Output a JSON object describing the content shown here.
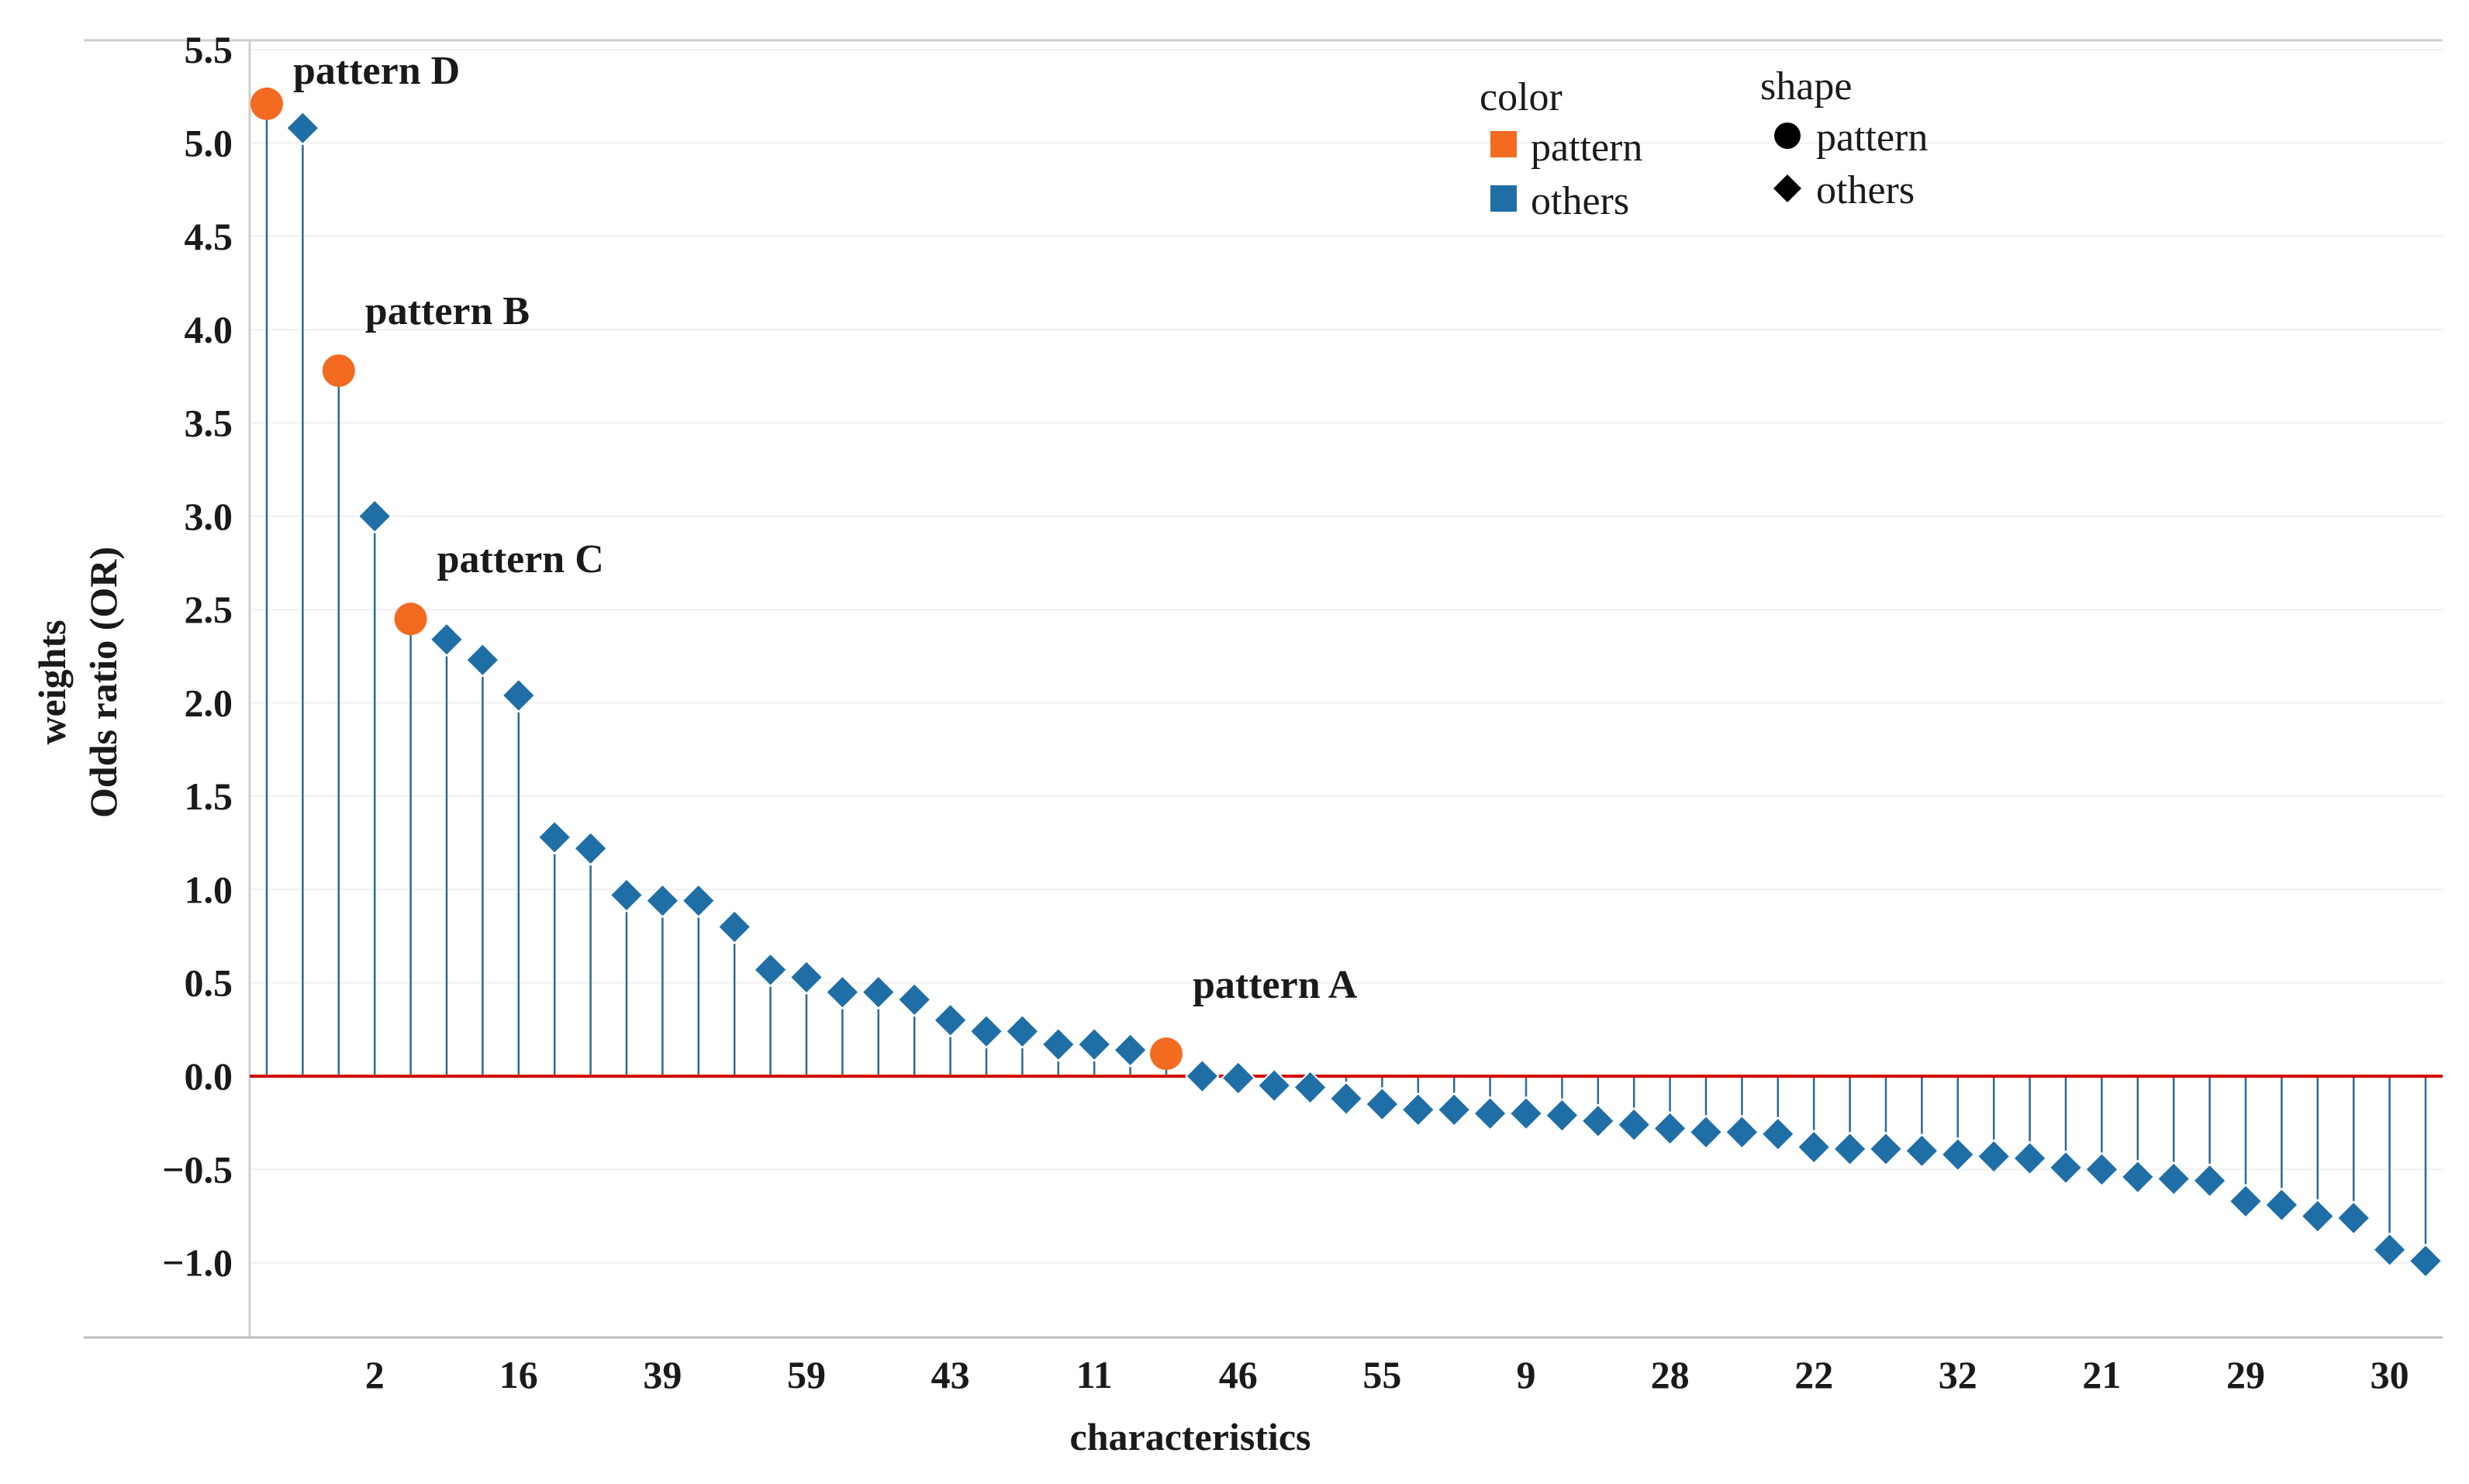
{
  "chart_data": {
    "type": "scatter",
    "subtype": "lollipop",
    "title": "",
    "xlabel": "characteristics",
    "ylabel_lines": [
      "weights",
      "Odds ratio (OR)"
    ],
    "ylim": [
      -1.4,
      5.55
    ],
    "yticks": [
      5.5,
      5.0,
      4.5,
      4.0,
      3.5,
      3.0,
      2.5,
      2.0,
      1.5,
      1.0,
      0.5,
      0.0,
      -0.5,
      -1.0
    ],
    "ytick_labels": [
      "5.5",
      "5.0",
      "4.5",
      "4.0",
      "3.5",
      "3.0",
      "2.5",
      "2.0",
      "1.5",
      "1.0",
      "0.5",
      "0.0",
      "−0.5",
      "−1.0"
    ],
    "x_tick_labels": [
      {
        "index": 3,
        "label": "2"
      },
      {
        "index": 7,
        "label": "16"
      },
      {
        "index": 11,
        "label": "39"
      },
      {
        "index": 15,
        "label": "59"
      },
      {
        "index": 19,
        "label": "43"
      },
      {
        "index": 23,
        "label": "11"
      },
      {
        "index": 27,
        "label": "46"
      },
      {
        "index": 31,
        "label": "55"
      },
      {
        "index": 35,
        "label": "9"
      },
      {
        "index": 39,
        "label": "28"
      },
      {
        "index": 43,
        "label": "22"
      },
      {
        "index": 47,
        "label": "32"
      },
      {
        "index": 51,
        "label": "21"
      },
      {
        "index": 55,
        "label": "29"
      },
      {
        "index": 59,
        "label": "30"
      }
    ],
    "reference_line": {
      "y": 0,
      "color": "#d40000"
    },
    "colors": {
      "pattern": "#f26b21",
      "others": "#1f6fa6",
      "stem": "#2b6a95"
    },
    "values": [
      5.21,
      5.08,
      3.78,
      3.0,
      2.45,
      2.34,
      2.23,
      2.04,
      1.28,
      1.22,
      0.97,
      0.94,
      0.94,
      0.8,
      0.57,
      0.53,
      0.45,
      0.45,
      0.41,
      0.3,
      0.24,
      0.24,
      0.17,
      0.17,
      0.14,
      0.12,
      0.0,
      -0.01,
      -0.05,
      -0.06,
      -0.12,
      -0.15,
      -0.18,
      -0.18,
      -0.2,
      -0.2,
      -0.21,
      -0.24,
      -0.26,
      -0.28,
      -0.3,
      -0.3,
      -0.31,
      -0.38,
      -0.39,
      -0.39,
      -0.4,
      -0.42,
      -0.43,
      -0.44,
      -0.49,
      -0.5,
      -0.54,
      -0.55,
      -0.56,
      -0.67,
      -0.69,
      -0.75,
      -0.76,
      -0.93,
      -0.99
    ],
    "categories": [
      "pattern",
      "others",
      "pattern",
      "others",
      "pattern",
      "others",
      "others",
      "others",
      "others",
      "others",
      "others",
      "others",
      "others",
      "others",
      "others",
      "others",
      "others",
      "others",
      "others",
      "others",
      "others",
      "others",
      "others",
      "others",
      "others",
      "pattern",
      "others",
      "others",
      "others",
      "others",
      "others",
      "others",
      "others",
      "others",
      "others",
      "others",
      "others",
      "others",
      "others",
      "others",
      "others",
      "others",
      "others",
      "others",
      "others",
      "others",
      "others",
      "others",
      "others",
      "others",
      "others",
      "others",
      "others",
      "others",
      "others",
      "others",
      "others",
      "others",
      "others",
      "others",
      "others"
    ],
    "annotations": [
      {
        "index": 0,
        "text": "pattern D"
      },
      {
        "index": 2,
        "text": "pattern B"
      },
      {
        "index": 4,
        "text": "pattern C"
      },
      {
        "index": 25,
        "text": "pattern A"
      }
    ],
    "legend": {
      "color_title": "color",
      "color_items": [
        {
          "label": "pattern",
          "color": "#f26b21"
        },
        {
          "label": "others",
          "color": "#1f6fa6"
        }
      ],
      "shape_title": "shape",
      "shape_items": [
        {
          "label": "pattern",
          "shape": "circle"
        },
        {
          "label": "others",
          "shape": "diamond"
        }
      ],
      "position": "top-right"
    }
  }
}
